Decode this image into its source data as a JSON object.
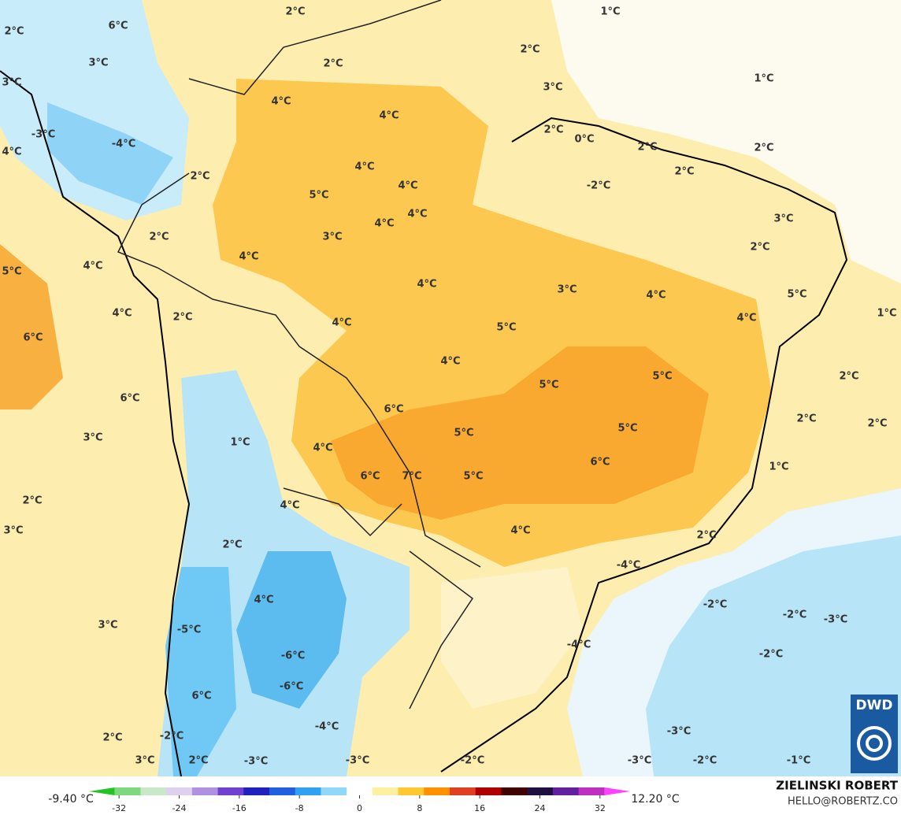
{
  "map": {
    "labels": [
      "2°C",
      "6°C",
      "3°C",
      "2°C",
      "1°C",
      "2°C",
      "2°C",
      "1°C",
      "3°C",
      "4°C",
      "3°C",
      "4°C",
      "2°C",
      "0°C",
      "-3°C",
      "-4°C",
      "4°C",
      "2°C",
      "2°C",
      "2°C",
      "4°C",
      "2°C",
      "-2°C",
      "4°C",
      "5°C",
      "4°C",
      "3°C",
      "4°C",
      "2°C",
      "3°C",
      "2°C",
      "4°C",
      "4°C",
      "5°C",
      "4°C",
      "3°C",
      "4°C",
      "5°C",
      "4°C",
      "1°C",
      "2°C",
      "4°C",
      "4°C",
      "5°C",
      "6°C",
      "4°C",
      "5°C",
      "2°C",
      "5°C",
      "6°C",
      "6°C",
      "2°C",
      "2°C",
      "5°C",
      "3°C",
      "5°C",
      "1°C",
      "4°C",
      "6°C",
      "1°C",
      "6°C",
      "7°C",
      "5°C",
      "2°C",
      "4°C",
      "3°C",
      "4°C",
      "2°C",
      "2°C",
      "-4°C",
      "4°C",
      "-2°C",
      "-2°C",
      "-3°C",
      "3°C",
      "-5°C",
      "-4°C",
      "-6°C",
      "-2°C",
      "6°C",
      "-6°C",
      "-4°C",
      "-3°C",
      "2°C",
      "-2°C",
      "2°C",
      "3°C",
      "-3°C",
      "-3°C",
      "-2°C",
      "-3°C",
      "-2°C",
      "-1°C"
    ],
    "logo": "DWD"
  },
  "colorbar": {
    "min_label": "-9.40 °C",
    "max_label": "12.20 °C",
    "lim": [
      -36,
      36
    ],
    "ticks": [
      -32,
      -24,
      -16,
      -8,
      0,
      8,
      16,
      24,
      32
    ],
    "colors": [
      "#22c422",
      "#7ed87e",
      "#c8e8c8",
      "#e0d0f0",
      "#b090e0",
      "#7040d0",
      "#2020c0",
      "#2060e0",
      "#30a0f0",
      "#90d8f8",
      "#ffffff",
      "#fff0a0",
      "#ffc830",
      "#ff9000",
      "#e04020",
      "#b00000",
      "#400000",
      "#201040",
      "#6020a0",
      "#c030c0",
      "#ff40ff"
    ]
  },
  "credits": {
    "author": "ZIELINSKI ROBERT",
    "contact": "HELLO@ROBERTZ.CO"
  }
}
